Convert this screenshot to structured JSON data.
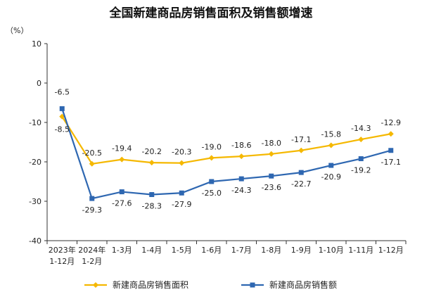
{
  "chart_data": {
    "type": "line",
    "title": "全国新建商品房销售面积及销售额增速",
    "unit": "（%）",
    "categories": [
      [
        "2023年",
        "1-12月"
      ],
      [
        "2024年",
        "1-2月"
      ],
      [
        "1-3月"
      ],
      [
        "1-4月"
      ],
      [
        "1-5月"
      ],
      [
        "1-6月"
      ],
      [
        "1-7月"
      ],
      [
        "1-8月"
      ],
      [
        "1-9月"
      ],
      [
        "1-10月"
      ],
      [
        "1-11月"
      ],
      [
        "1-12月"
      ]
    ],
    "ylim": [
      -40,
      10
    ],
    "yticks": [
      10,
      0,
      -10,
      -20,
      -30,
      -40
    ],
    "grid": false,
    "legend_position": "bottom",
    "series": [
      {
        "name": "新建商品房销售面积",
        "color": "#F5B800",
        "values": [
          -8.5,
          -20.5,
          -19.4,
          -20.2,
          -20.3,
          -19.0,
          -18.6,
          -18.0,
          -17.1,
          -15.8,
          -14.3,
          -12.9
        ],
        "labels": [
          "-8.5",
          "-20.5",
          "-19.4",
          "-20.2",
          "-20.3",
          "-19.0",
          "-18.6",
          "-18.0",
          "-17.1",
          "-15.8",
          "-14.3",
          "-12.9"
        ]
      },
      {
        "name": "新建商品房销售额",
        "color": "#2E67B1",
        "values": [
          -6.5,
          -29.3,
          -27.6,
          -28.3,
          -27.9,
          -25.0,
          -24.3,
          -23.6,
          -22.7,
          -20.9,
          -19.2,
          -17.1
        ],
        "labels": [
          "-6.5",
          "-29.3",
          "-27.6",
          "-28.3",
          "-27.9",
          "-25.0",
          "-24.3",
          "-23.6",
          "-22.7",
          "-20.9",
          "-19.2",
          "-17.1"
        ]
      }
    ]
  }
}
